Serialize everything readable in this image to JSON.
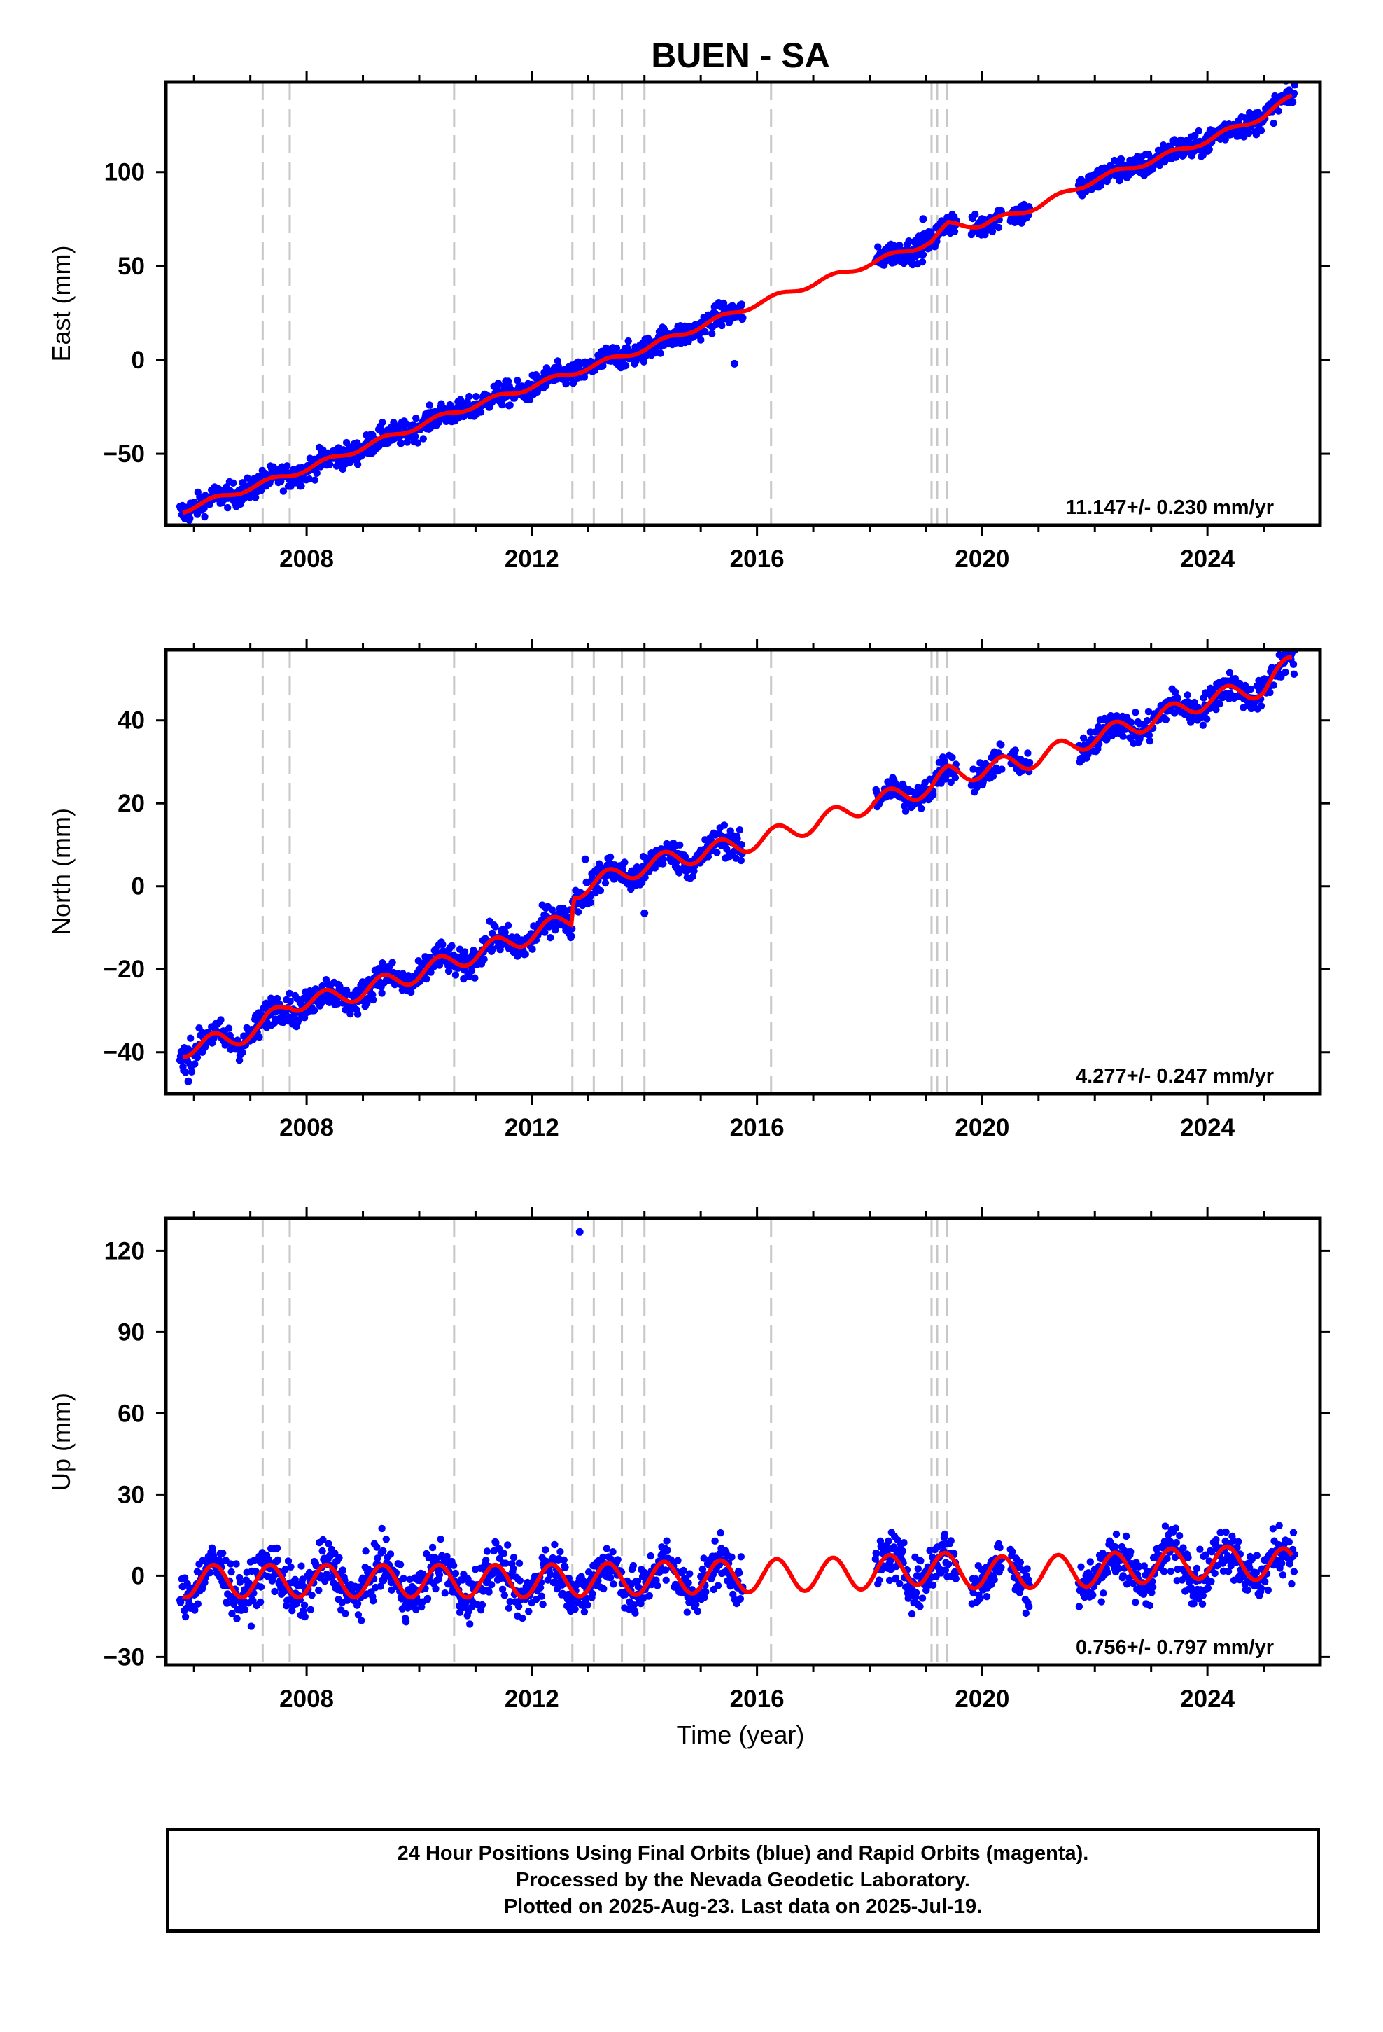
{
  "chart_data": {
    "title": "BUEN - SA",
    "xlabel": "Time (year)",
    "x_ticks": [
      "2008",
      "2012",
      "2016",
      "2020",
      "2024"
    ],
    "xlim": [
      2005.5,
      2026.0
    ],
    "colors": {
      "data": "#0000ff",
      "model": "#ff0000",
      "breaks": "#c8c8c8"
    },
    "step_lines": [
      2007.22,
      2007.7,
      2010.62,
      2012.72,
      2013.1,
      2013.6,
      2014.0,
      2016.25,
      2019.1,
      2019.2,
      2019.38
    ],
    "gaps": [
      [
        2015.75,
        2018.1
      ],
      [
        2019.55,
        2019.8
      ],
      [
        2020.35,
        2020.5
      ],
      [
        2020.85,
        2021.7
      ]
    ],
    "outliers": {
      "east": [
        [
          2018.95,
          75
        ],
        [
          2015.6,
          -2
        ]
      ],
      "north": [
        [
          2012.95,
          6.5
        ],
        [
          2014.0,
          -6.5
        ],
        [
          2005.9,
          -47
        ]
      ],
      "up": [
        [
          2012.85,
          127
        ]
      ]
    },
    "panels": [
      {
        "id": "east",
        "ylabel": "East (mm)",
        "ylim": [
          -88,
          148
        ],
        "y_ticks": [
          100,
          50,
          0,
          -50
        ],
        "rate_label": "11.147+/- 0.230 mm/yr",
        "rate": 11.147,
        "grid": false,
        "model_points": [
          [
            2005.8,
            -80
          ],
          [
            2008,
            -58
          ],
          [
            2010.6,
            -28
          ],
          [
            2012,
            -14
          ],
          [
            2012.8,
            -6
          ],
          [
            2014,
            6
          ],
          [
            2016,
            30
          ],
          [
            2017.7,
            48
          ],
          [
            2019.1,
            63
          ],
          [
            2019.4,
            72
          ],
          [
            2020,
            72
          ],
          [
            2021,
            82
          ],
          [
            2022,
            96
          ],
          [
            2023,
            106
          ],
          [
            2024,
            117
          ],
          [
            2025,
            130
          ],
          [
            2025.5,
            140
          ]
        ],
        "scatter": 4.5,
        "seasonal": 1.5
      },
      {
        "id": "north",
        "ylabel": "North (mm)",
        "ylim": [
          -50,
          57
        ],
        "y_ticks": [
          40,
          20,
          0,
          -20,
          -40
        ],
        "rate_label": "4.277+/- 0.247 mm/yr",
        "rate": 4.277,
        "grid": false,
        "model_points": [
          [
            2005.8,
            -39
          ],
          [
            2006.6,
            -37
          ],
          [
            2007.2,
            -34
          ],
          [
            2007.7,
            -28
          ],
          [
            2008.5,
            -27
          ],
          [
            2009.5,
            -23
          ],
          [
            2010.6,
            -18
          ],
          [
            2011.5,
            -14
          ],
          [
            2012.7,
            -8
          ],
          [
            2012.75,
            -1
          ],
          [
            2013.6,
            3
          ],
          [
            2014,
            5
          ],
          [
            2015,
            8
          ],
          [
            2016,
            11
          ],
          [
            2017,
            15
          ],
          [
            2018,
            20
          ],
          [
            2019.1,
            24
          ],
          [
            2019.4,
            27
          ],
          [
            2020,
            28
          ],
          [
            2021,
            31
          ],
          [
            2022,
            36
          ],
          [
            2023,
            40
          ],
          [
            2024,
            45
          ],
          [
            2025,
            48
          ],
          [
            2025.5,
            54
          ]
        ],
        "scatter": 2.5,
        "seasonal": 2.2
      },
      {
        "id": "up",
        "ylabel": "Up (mm)",
        "ylim": [
          -33,
          132
        ],
        "y_ticks": [
          120,
          90,
          60,
          30,
          0,
          -30
        ],
        "rate_label": "0.756+/- 0.797 mm/yr",
        "rate": 0.756,
        "grid": false,
        "model_points": [
          [
            2005.8,
            -2
          ],
          [
            2012,
            -2
          ],
          [
            2014,
            -1
          ],
          [
            2016,
            0
          ],
          [
            2018,
            1
          ],
          [
            2019.1,
            3
          ],
          [
            2020,
            1
          ],
          [
            2022,
            2
          ],
          [
            2024,
            5
          ],
          [
            2025.5,
            4
          ]
        ],
        "scatter": 6.5,
        "seasonal": 6.0
      }
    ]
  },
  "caption": {
    "line1": "24 Hour Positions Using Final Orbits (blue) and Rapid Orbits (magenta).",
    "line2": "Processed by the Nevada Geodetic Laboratory.",
    "line3": "Plotted on 2025-Aug-23. Last data on 2025-Jul-19."
  }
}
